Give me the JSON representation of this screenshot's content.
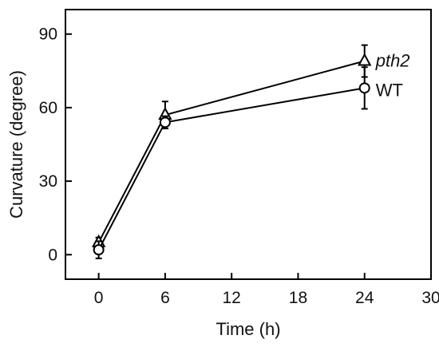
{
  "chart_data": {
    "type": "line",
    "xlabel": "Time (h)",
    "ylabel": "Curvature (degree)",
    "xlim": [
      -3,
      30
    ],
    "ylim": [
      -10,
      100
    ],
    "xticks": [
      0,
      6,
      12,
      18,
      24,
      30
    ],
    "yticks": [
      0,
      30,
      60,
      90
    ],
    "grid": false,
    "legend": "direct labels at line ends",
    "series": [
      {
        "name": "pth2",
        "italic": true,
        "marker": "triangle-open",
        "x": [
          0,
          6,
          24
        ],
        "y": [
          5,
          57,
          79
        ],
        "err": [
          2,
          5.5,
          6.5
        ]
      },
      {
        "name": "WT",
        "italic": false,
        "marker": "circle-open",
        "x": [
          0,
          6,
          24
        ],
        "y": [
          2,
          54,
          68
        ],
        "err": [
          3.5,
          2.5,
          8.5
        ]
      }
    ],
    "colors": {
      "line": "#000000",
      "marker_fill": "#ffffff"
    }
  }
}
